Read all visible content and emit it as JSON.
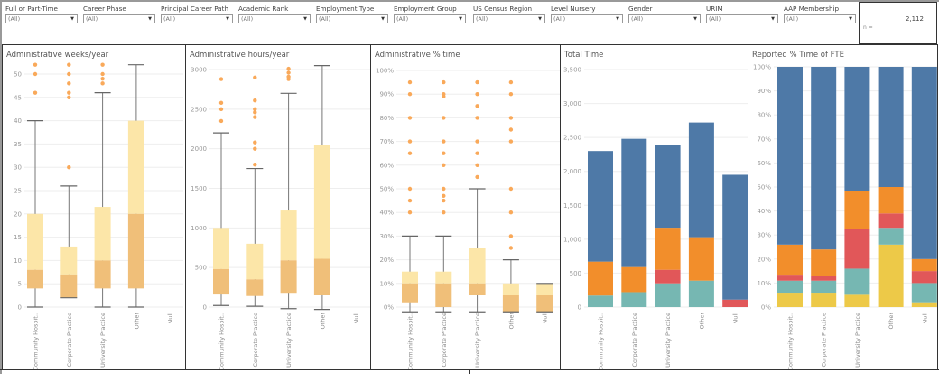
{
  "filters": [
    {
      "label": "Full or Part-Time",
      "value": "(All)"
    },
    {
      "label": "Career Phase",
      "value": "(All)"
    },
    {
      "label": "Principal Career Path",
      "value": "(All)"
    },
    {
      "label": "Academic Rank",
      "value": "(All)"
    },
    {
      "label": "Employment Type",
      "value": "(All)"
    },
    {
      "label": "Employment Group",
      "value": "(All)"
    },
    {
      "label": "US Census Region",
      "value": "(All)"
    },
    {
      "label": "Level Nursery",
      "value": "(All)"
    },
    {
      "label": "Gender",
      "value": "(All)"
    },
    {
      "label": "URIM",
      "value": "(All)"
    },
    {
      "label": "AAP Membership",
      "value": "(All)"
    }
  ],
  "n_box": {
    "label": "n =",
    "value": "2,112"
  },
  "colors": {
    "box_upper": "#fce6a8",
    "box_lower": "#f0bf79",
    "outlier": "#f9a95a",
    "whisker": "#777777",
    "blue": "#4e79a7",
    "orange": "#f28e2b",
    "red": "#e15759",
    "teal": "#76b7b2",
    "yellow": "#edc948",
    "grid": "#eeeeee"
  },
  "chart_data": [
    {
      "id": "weeks",
      "type": "box",
      "title": "Administrative weeks/year",
      "categories": [
        "Community Hospit..",
        "Corporate Practice",
        "University Practice",
        "Other",
        "Null"
      ],
      "ylim": [
        0,
        52
      ],
      "yticks": [
        0,
        5,
        10,
        15,
        20,
        25,
        30,
        35,
        40,
        45,
        50
      ],
      "ytick_labels": [
        "0",
        "5",
        "10",
        "15",
        "20",
        "25",
        "30",
        "35",
        "40",
        "45",
        "50"
      ],
      "boxes": [
        {
          "min": 0,
          "q1": 4,
          "median": 8,
          "q3": 20,
          "max": 40,
          "outliers": [
            46,
            50,
            52
          ]
        },
        {
          "min": 2,
          "q1": 2,
          "median": 7,
          "q3": 13,
          "max": 26,
          "outliers": [
            30,
            45,
            46,
            48,
            50,
            52
          ]
        },
        {
          "min": 0,
          "q1": 4,
          "median": 10,
          "q3": 21.5,
          "max": 46,
          "outliers": [
            48,
            49,
            50,
            52
          ]
        },
        {
          "min": 0,
          "q1": 4,
          "median": 20,
          "q3": 40,
          "max": 52,
          "outliers": []
        },
        null
      ]
    },
    {
      "id": "hours",
      "type": "box",
      "title": "Administrative hours/year",
      "categories": [
        "Community Hospit..",
        "Corporate Practice",
        "University Practice",
        "Other",
        "Null"
      ],
      "ylim": [
        0,
        3050
      ],
      "yticks": [
        0,
        500,
        1000,
        1500,
        2000,
        2500,
        3000
      ],
      "ytick_labels": [
        "0",
        "500",
        "1000",
        "1500",
        "2000",
        "2500",
        "3000"
      ],
      "boxes": [
        {
          "min": 20,
          "q1": 170,
          "median": 480,
          "q3": 1000,
          "max": 2200,
          "outliers": [
            2350,
            2500,
            2580,
            2880
          ]
        },
        {
          "min": 10,
          "q1": 140,
          "median": 350,
          "q3": 800,
          "max": 1750,
          "outliers": [
            1800,
            2000,
            2080,
            2400,
            2460,
            2500,
            2610,
            2900
          ]
        },
        {
          "min": -20,
          "q1": 180,
          "median": 590,
          "q3": 1220,
          "max": 2700,
          "outliers": [
            2880,
            2910,
            2960,
            3010
          ]
        },
        {
          "min": -30,
          "q1": 150,
          "median": 610,
          "q3": 2050,
          "max": 3050,
          "outliers": []
        },
        null
      ]
    },
    {
      "id": "pct",
      "type": "box",
      "title": "Administrative % time",
      "categories": [
        "Community Hospit..",
        "Corporate Practice",
        "University Practice",
        "Other",
        "Null"
      ],
      "ylim": [
        -2,
        100
      ],
      "yticks": [
        0,
        10,
        20,
        30,
        40,
        50,
        60,
        70,
        80,
        90,
        100
      ],
      "ytick_labels": [
        "0%",
        "10%",
        "20%",
        "30%",
        "40%",
        "50%",
        "60%",
        "70%",
        "80%",
        "90%",
        "100%"
      ],
      "boxes": [
        {
          "min": -2,
          "q1": 2,
          "median": 10,
          "q3": 15,
          "max": 30,
          "outliers": [
            40,
            45,
            50,
            65,
            70,
            80,
            90,
            95
          ]
        },
        {
          "min": -2,
          "q1": 0,
          "median": 10,
          "q3": 15,
          "max": 30,
          "outliers": [
            40,
            45,
            47,
            50,
            60,
            65,
            70,
            80,
            89,
            90,
            95
          ]
        },
        {
          "min": -2,
          "q1": 5,
          "median": 10,
          "q3": 25,
          "max": 50,
          "outliers": [
            55,
            60,
            65,
            70,
            80,
            85,
            90,
            95
          ]
        },
        {
          "min": -2,
          "q1": -2,
          "median": 5,
          "q3": 10,
          "max": 20,
          "outliers": [
            25,
            30,
            40,
            50,
            70,
            75,
            80,
            90,
            95
          ]
        },
        {
          "min": -2,
          "q1": -2,
          "median": 5,
          "q3": 10,
          "max": 10,
          "outliers": []
        }
      ]
    },
    {
      "id": "total",
      "type": "stacked-bar",
      "title": "Total Time",
      "categories": [
        "Community Hospit..",
        "Corporate Practice",
        "University Practice",
        "Other",
        "Null"
      ],
      "ylim": [
        0,
        3500
      ],
      "yticks": [
        0,
        500,
        1000,
        1500,
        2000,
        2500,
        3000,
        3500
      ],
      "ytick_labels": [
        "0",
        "500",
        "1,000",
        "1,500",
        "2,000",
        "2,500",
        "3,000",
        "3,500"
      ],
      "series": [
        {
          "name": "teal",
          "color_key": "teal",
          "values": [
            170,
            220,
            350,
            390,
            0
          ]
        },
        {
          "name": "red",
          "color_key": "red",
          "values": [
            0,
            0,
            200,
            0,
            110
          ]
        },
        {
          "name": "orange",
          "color_key": "orange",
          "values": [
            500,
            370,
            620,
            640,
            0
          ]
        },
        {
          "name": "blue",
          "color_key": "blue",
          "values": [
            1630,
            1890,
            1220,
            1690,
            1840
          ]
        }
      ]
    },
    {
      "id": "fte",
      "type": "stacked-bar",
      "title": "Reported % Time of FTE",
      "categories": [
        "Community Hospit..",
        "Corporate Practice",
        "University Practice",
        "Other",
        "Null"
      ],
      "ylim": [
        0,
        100
      ],
      "yticks": [
        0,
        10,
        20,
        30,
        40,
        50,
        60,
        70,
        80,
        90,
        100
      ],
      "ytick_labels": [
        "0%",
        "10%",
        "20%",
        "30%",
        "40%",
        "50%",
        "60%",
        "70%",
        "80%",
        "90%",
        "100%"
      ],
      "series": [
        {
          "name": "yellow",
          "color_key": "yellow",
          "values": [
            6,
            6,
            5.5,
            26,
            2
          ]
        },
        {
          "name": "teal",
          "color_key": "teal",
          "values": [
            5,
            5,
            10.5,
            7,
            8
          ]
        },
        {
          "name": "red",
          "color_key": "red",
          "values": [
            2.5,
            2,
            16.5,
            6,
            5
          ]
        },
        {
          "name": "orange",
          "color_key": "orange",
          "values": [
            12.5,
            11,
            16,
            11,
            5
          ]
        },
        {
          "name": "blue",
          "color_key": "blue",
          "values": [
            74,
            76,
            51.5,
            50,
            80
          ]
        }
      ]
    }
  ]
}
